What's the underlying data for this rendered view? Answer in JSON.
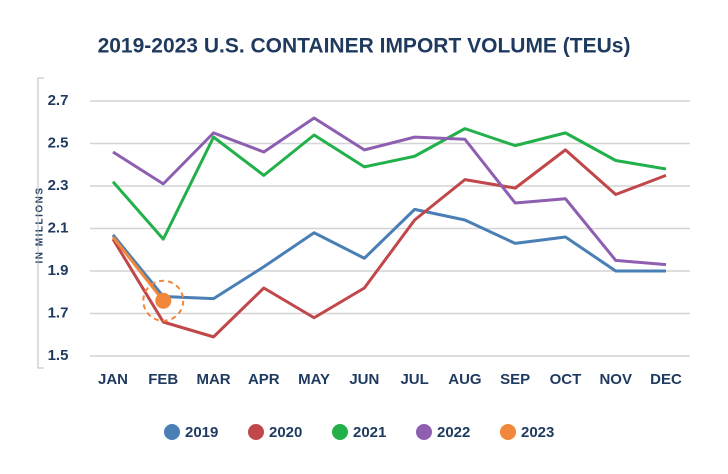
{
  "chart_data": {
    "type": "line",
    "title": "2019-2023 U.S. CONTAINER IMPORT VOLUME (TEUs)",
    "y_label": "IN MILLIONS",
    "categories": [
      "JAN",
      "FEB",
      "MAR",
      "APR",
      "MAY",
      "JUN",
      "JUL",
      "AUG",
      "SEP",
      "OCT",
      "NOV",
      "DEC"
    ],
    "series": [
      {
        "name": "2019",
        "color": "#4a7fb5",
        "values": [
          2.07,
          1.78,
          1.77,
          1.92,
          2.08,
          1.96,
          2.19,
          2.14,
          2.03,
          2.06,
          1.9,
          1.9
        ]
      },
      {
        "name": "2020",
        "color": "#c0474a",
        "values": [
          2.05,
          1.66,
          1.59,
          1.82,
          1.68,
          1.82,
          2.14,
          2.33,
          2.29,
          2.47,
          2.26,
          2.35
        ]
      },
      {
        "name": "2021",
        "color": "#22b04b",
        "values": [
          2.32,
          2.05,
          2.53,
          2.35,
          2.54,
          2.39,
          2.44,
          2.57,
          2.49,
          2.55,
          2.42,
          2.38
        ]
      },
      {
        "name": "2022",
        "color": "#8e5fb0",
        "values": [
          2.46,
          2.31,
          2.55,
          2.46,
          2.62,
          2.47,
          2.53,
          2.52,
          2.22,
          2.24,
          1.95,
          1.93
        ]
      },
      {
        "name": "2023",
        "color": "#f0873a",
        "values": [
          2.06,
          1.76,
          null,
          null,
          null,
          null,
          null,
          null,
          null,
          null,
          null,
          null
        ]
      }
    ],
    "ylim": [
      1.5,
      2.7
    ],
    "yticks": [
      1.5,
      1.7,
      1.9,
      2.1,
      2.3,
      2.5,
      2.7
    ],
    "grid": true,
    "legend": "bottom"
  }
}
